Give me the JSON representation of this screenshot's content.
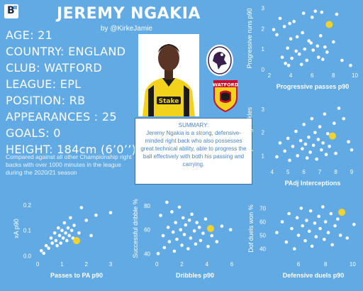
{
  "header": {
    "logo_text": "B",
    "title": "JEREMY NGAKIA",
    "byline": "by @KirkeJamie"
  },
  "profile": {
    "age": "AGE: 21",
    "country": "COUNTRY: ENGLAND",
    "club": "CLUB: WATFORD",
    "league": "LEAGUE: EPL",
    "position": "POSITION: RB",
    "appearances": "APPEARANCES : 25",
    "goals": "GOALS: 0",
    "height": "HEIGHT: 184cm (6’0’’)"
  },
  "comparison_note": "Compared against all other Championship right backs with over 1000 minutes in the league during the 2020/21 season",
  "summary": {
    "heading": "SUMMARY:",
    "text": "Jeremy Ngakia is a strong, defensive-minded right back who also possesses great technical ability, able to progress the ball effectively with both his passing and carrying."
  },
  "badges": {
    "watford_text": "WATFORD"
  },
  "colors": {
    "background": "#61aae4",
    "points": "#ffffff",
    "highlight": "#f2d22e",
    "summary_text": "#4c86c2",
    "summary_border": "#3f6fa8"
  },
  "chart_data": [
    {
      "type": "scatter",
      "title": "",
      "xlabel": "Progressive passes p90",
      "ylabel": "Progressive runs p90",
      "xlim": [
        1.8,
        10.3
      ],
      "ylim": [
        0,
        3.05
      ],
      "xticks": [
        "2",
        "4",
        "6",
        "8",
        "10"
      ],
      "yticks": [
        "0",
        "1",
        "2",
        "3"
      ],
      "highlight": {
        "x": 7.6,
        "y": 2.2
      },
      "points": [
        [
          2.4,
          1.95
        ],
        [
          2.7,
          1.7
        ],
        [
          3.0,
          2.5
        ],
        [
          3.2,
          0.6
        ],
        [
          3.4,
          2.1
        ],
        [
          3.5,
          0.3
        ],
        [
          3.7,
          1.05
        ],
        [
          3.8,
          0.2
        ],
        [
          3.9,
          2.25
        ],
        [
          4.0,
          1.5
        ],
        [
          4.1,
          0.55
        ],
        [
          4.3,
          2.35
        ],
        [
          4.5,
          0.9
        ],
        [
          4.6,
          1.6
        ],
        [
          4.8,
          0.75
        ],
        [
          5.0,
          0.25
        ],
        [
          5.1,
          1.8
        ],
        [
          5.2,
          2.75
        ],
        [
          5.3,
          1.0
        ],
        [
          5.5,
          0.45
        ],
        [
          5.7,
          1.4
        ],
        [
          5.9,
          1.3
        ],
        [
          6.0,
          2.55
        ],
        [
          6.1,
          0.95
        ],
        [
          6.3,
          2.85
        ],
        [
          6.5,
          1.15
        ],
        [
          6.6,
          0.6
        ],
        [
          6.8,
          1.65
        ],
        [
          6.9,
          2.8
        ],
        [
          7.0,
          0.5
        ],
        [
          7.2,
          1.1
        ],
        [
          7.4,
          0.85
        ],
        [
          8.0,
          1.35
        ],
        [
          8.3,
          2.7
        ],
        [
          8.8,
          0.45
        ],
        [
          9.6,
          0.2
        ]
      ]
    },
    {
      "type": "scatter",
      "title": "",
      "xlabel": "PAdj Interceptions",
      "ylabel": "PAdj Sliding tackles",
      "xlim": [
        3.7,
        9.4
      ],
      "ylim": [
        0.55,
        3.25
      ],
      "xticks": [
        "4",
        "5",
        "6",
        "7",
        "8",
        "9"
      ],
      "yticks": [
        "1",
        "2",
        "3"
      ],
      "highlight": {
        "x": 7.8,
        "y": 1.85
      },
      "points": [
        [
          4.3,
          0.95
        ],
        [
          4.5,
          1.55
        ],
        [
          4.8,
          1.2
        ],
        [
          5.0,
          1.75
        ],
        [
          5.1,
          0.8
        ],
        [
          5.3,
          1.4
        ],
        [
          5.5,
          2.05
        ],
        [
          5.6,
          1.0
        ],
        [
          5.8,
          1.65
        ],
        [
          5.9,
          1.3
        ],
        [
          6.0,
          2.35
        ],
        [
          6.1,
          1.5
        ],
        [
          6.2,
          0.9
        ],
        [
          6.3,
          1.8
        ],
        [
          6.4,
          1.15
        ],
        [
          6.5,
          2.6
        ],
        [
          6.6,
          1.45
        ],
        [
          6.7,
          2.0
        ],
        [
          6.8,
          0.85
        ],
        [
          6.9,
          1.7
        ],
        [
          7.0,
          2.25
        ],
        [
          7.1,
          1.25
        ],
        [
          7.2,
          1.55
        ],
        [
          7.3,
          2.8
        ],
        [
          7.4,
          1.05
        ],
        [
          7.5,
          1.95
        ],
        [
          7.6,
          1.4
        ],
        [
          7.9,
          2.4
        ],
        [
          8.0,
          1.1
        ],
        [
          8.2,
          3.05
        ],
        [
          8.5,
          2.6
        ],
        [
          8.8,
          1.6
        ],
        [
          9.0,
          1.25
        ]
      ]
    },
    {
      "type": "scatter",
      "title": "",
      "xlabel": "Passes to PA p90",
      "ylabel": "xA p90",
      "xlim": [
        -0.15,
        3.35
      ],
      "ylim": [
        -0.01,
        0.225
      ],
      "xticks": [
        "0",
        "1",
        "2",
        "3"
      ],
      "yticks": [
        "0.0",
        "0.1",
        "0.2"
      ],
      "highlight": {
        "x": 1.6,
        "y": 0.06
      },
      "points": [
        [
          0.15,
          0.02
        ],
        [
          0.25,
          0.01
        ],
        [
          0.35,
          0.04
        ],
        [
          0.45,
          0.03
        ],
        [
          0.55,
          0.07
        ],
        [
          0.6,
          0.05
        ],
        [
          0.7,
          0.09
        ],
        [
          0.75,
          0.06
        ],
        [
          0.8,
          0.04
        ],
        [
          0.85,
          0.11
        ],
        [
          0.9,
          0.08
        ],
        [
          0.95,
          0.05
        ],
        [
          1.0,
          0.1
        ],
        [
          1.05,
          0.07
        ],
        [
          1.1,
          0.13
        ],
        [
          1.15,
          0.09
        ],
        [
          1.2,
          0.06
        ],
        [
          1.25,
          0.11
        ],
        [
          1.3,
          0.08
        ],
        [
          1.35,
          0.15
        ],
        [
          1.4,
          0.1
        ],
        [
          1.45,
          0.07
        ],
        [
          1.5,
          0.12
        ],
        [
          1.7,
          0.09
        ],
        [
          1.8,
          0.19
        ],
        [
          2.0,
          0.14
        ],
        [
          2.2,
          0.08
        ],
        [
          2.4,
          0.16
        ],
        [
          3.0,
          0.17
        ]
      ]
    },
    {
      "type": "scatter",
      "title": "",
      "xlabel": "Dribbles p90",
      "ylabel": "Successful dribble %",
      "xlim": [
        -0.3,
        6.4
      ],
      "ylim": [
        36,
        86
      ],
      "xticks": [
        "0",
        "2",
        "4",
        "6"
      ],
      "yticks": [
        "40",
        "60",
        "80"
      ],
      "highlight": {
        "x": 4.3,
        "y": 61
      },
      "points": [
        [
          0.1,
          40
        ],
        [
          0.3,
          72
        ],
        [
          0.5,
          55
        ],
        [
          0.6,
          45
        ],
        [
          0.8,
          83
        ],
        [
          0.9,
          62
        ],
        [
          1.0,
          50
        ],
        [
          1.2,
          75
        ],
        [
          1.3,
          58
        ],
        [
          1.4,
          42
        ],
        [
          1.5,
          66
        ],
        [
          1.6,
          52
        ],
        [
          1.8,
          79
        ],
        [
          1.9,
          60
        ],
        [
          2.0,
          47
        ],
        [
          2.1,
          70
        ],
        [
          2.2,
          56
        ],
        [
          2.3,
          64
        ],
        [
          2.5,
          44
        ],
        [
          2.6,
          68
        ],
        [
          2.7,
          53
        ],
        [
          2.8,
          73
        ],
        [
          3.0,
          59
        ],
        [
          3.1,
          48
        ],
        [
          3.2,
          66
        ],
        [
          3.4,
          62
        ],
        [
          3.5,
          51
        ],
        [
          3.7,
          57
        ],
        [
          3.9,
          69
        ],
        [
          4.1,
          46
        ],
        [
          4.4,
          55
        ],
        [
          4.8,
          50
        ],
        [
          5.2,
          63
        ],
        [
          5.9,
          60
        ]
      ]
    },
    {
      "type": "scatter",
      "title": "",
      "xlabel": "Defensive duels p90",
      "ylabel": "Dof duels won %",
      "xlim": [
        3.8,
        10.4
      ],
      "ylim": [
        33,
        77
      ],
      "xticks": [
        "6",
        "8",
        "10"
      ],
      "yticks": [
        "40",
        "50",
        "60",
        "70"
      ],
      "highlight": {
        "x": 9.2,
        "y": 67
      },
      "points": [
        [
          4.4,
          52
        ],
        [
          4.8,
          60
        ],
        [
          5.1,
          45
        ],
        [
          5.3,
          66
        ],
        [
          5.5,
          55
        ],
        [
          5.7,
          40
        ],
        [
          5.9,
          63
        ],
        [
          6.0,
          50
        ],
        [
          6.2,
          70
        ],
        [
          6.3,
          57
        ],
        [
          6.5,
          46
        ],
        [
          6.6,
          61
        ],
        [
          6.8,
          53
        ],
        [
          6.9,
          68
        ],
        [
          7.0,
          42
        ],
        [
          7.2,
          59
        ],
        [
          7.3,
          49
        ],
        [
          7.5,
          64
        ],
        [
          7.6,
          55
        ],
        [
          7.8,
          71
        ],
        [
          7.9,
          47
        ],
        [
          8.0,
          60
        ],
        [
          8.2,
          52
        ],
        [
          8.4,
          66
        ],
        [
          8.5,
          43
        ],
        [
          8.7,
          57
        ],
        [
          8.9,
          62
        ],
        [
          9.1,
          50
        ],
        [
          9.6,
          48
        ],
        [
          10.1,
          58
        ]
      ]
    }
  ]
}
